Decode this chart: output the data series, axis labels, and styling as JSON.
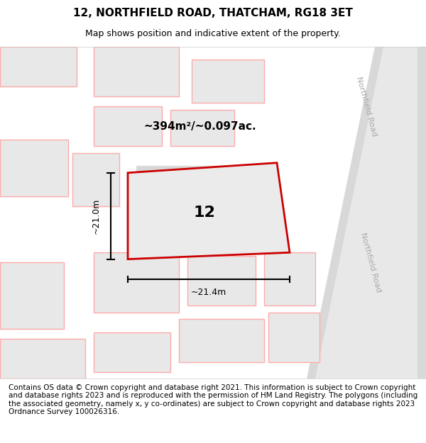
{
  "title_line1": "12, NORTHFIELD ROAD, THATCHAM, RG18 3ET",
  "title_line2": "Map shows position and indicative extent of the property.",
  "footer_text": "Contains OS data © Crown copyright and database right 2021. This information is subject to Crown copyright and database rights 2023 and is reproduced with the permission of HM Land Registry. The polygons (including the associated geometry, namely x, y co-ordinates) are subject to Crown copyright and database rights 2023 Ordnance Survey 100026316.",
  "area_label": "~394m²/~0.097ac.",
  "width_label": "~21.4m",
  "height_label": "~21.0m",
  "plot_number": "12",
  "bg_color": "#f5f5f5",
  "map_bg": "#ffffff",
  "plot_fill": "#e8e8e8",
  "plot_border": "#cc0000",
  "road_color": "#d0d0d0",
  "road_label_color": "#b0b0b0",
  "building_fill": "#e0e0e0",
  "building_border_light": "#ffaaaa",
  "building_border_dark": "#cc0000",
  "dim_color": "#1a1a1a",
  "title_fontsize": 11,
  "subtitle_fontsize": 9,
  "footer_fontsize": 7.5
}
